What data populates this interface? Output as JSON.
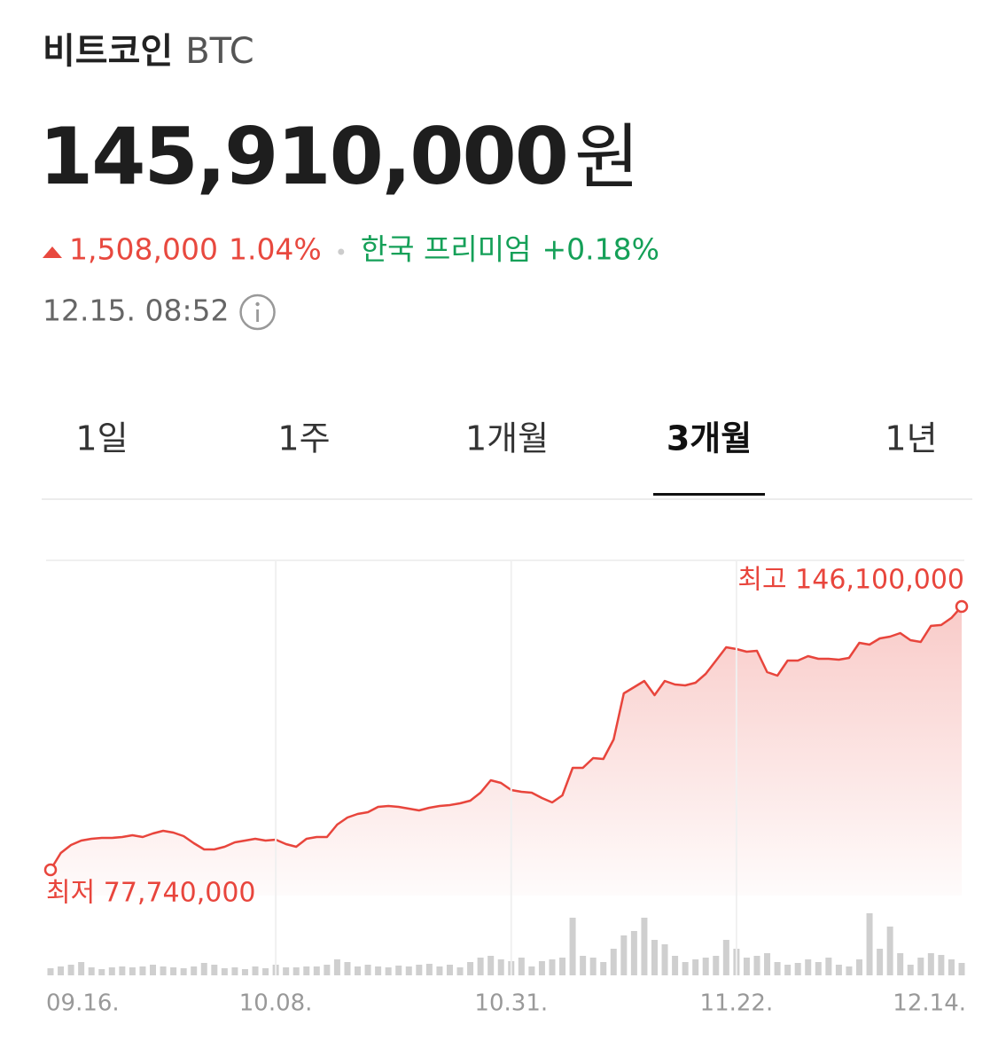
{
  "header": {
    "name": "비트코인",
    "ticker": "BTC"
  },
  "price": {
    "value": "145,910,000",
    "unit": "원"
  },
  "change": {
    "amount": "1,508,000",
    "percent": "1.04%",
    "premium_label": "한국 프리미엄",
    "premium": "+0.18%"
  },
  "timestamp": "12.15. 08:52",
  "tabs": [
    "1일",
    "1주",
    "1개월",
    "3개월",
    "1년"
  ],
  "active_tab": 3,
  "chart_data": [
    {
      "type": "line",
      "categories": [
        "09.16.",
        null,
        null,
        null,
        null,
        null,
        null,
        null,
        null,
        null,
        null,
        null,
        null,
        null,
        null,
        null,
        null,
        null,
        null,
        null,
        null,
        null,
        "10.08.",
        null,
        null,
        null,
        null,
        null,
        null,
        null,
        null,
        null,
        null,
        null,
        null,
        null,
        null,
        null,
        null,
        null,
        null,
        null,
        null,
        null,
        null,
        "10.31.",
        null,
        null,
        null,
        null,
        null,
        null,
        null,
        null,
        null,
        null,
        null,
        null,
        null,
        null,
        null,
        null,
        null,
        null,
        null,
        null,
        null,
        "11.22.",
        null,
        null,
        null,
        null,
        null,
        null,
        null,
        null,
        null,
        null,
        null,
        null,
        null,
        null,
        null,
        null,
        null,
        null,
        null,
        null,
        null,
        "12.14."
      ],
      "series": [
        {
          "color": "#e8453c",
          "values": [
            77740000,
            82110000,
            84190000,
            85340000,
            85800000,
            86030000,
            86030000,
            86260000,
            86720000,
            86260000,
            87180000,
            87870000,
            87410000,
            86490000,
            84650000,
            83030000,
            83030000,
            83730000,
            84880000,
            85340000,
            85800000,
            85340000,
            85570000,
            84420000,
            83730000,
            85800000,
            86260000,
            86260000,
            89480000,
            91320000,
            92240000,
            92700000,
            94080000,
            94310000,
            94080000,
            93620000,
            93160000,
            93850000,
            94310000,
            94540000,
            95010000,
            95700000,
            97770000,
            100990000,
            100300000,
            98460000,
            98000000,
            97770000,
            96390000,
            95240000,
            97080000,
            104210000,
            104210000,
            106750000,
            106520000,
            111580000,
            123550000,
            125160000,
            126770000,
            123090000,
            126770000,
            125850000,
            125620000,
            126310000,
            128610000,
            132070000,
            135520000,
            135060000,
            134370000,
            134600000,
            129070000,
            128150000,
            132070000,
            132070000,
            133220000,
            132530000,
            132530000,
            132300000,
            132760000,
            136670000,
            136210000,
            137820000,
            138280000,
            139200000,
            137360000,
            136900000,
            141050000,
            141280000,
            143120000,
            146100000
          ]
        }
      ],
      "annotations": {
        "high": "최고 146,100,000",
        "low": "최저 77,740,000"
      }
    },
    {
      "type": "bar",
      "color": "#cfcfcf",
      "values": [
        8,
        10,
        12,
        15,
        9,
        7,
        9,
        10,
        9,
        10,
        12,
        10,
        9,
        8,
        10,
        14,
        12,
        8,
        9,
        7,
        10,
        8,
        12,
        9,
        9,
        10,
        10,
        12,
        18,
        15,
        10,
        12,
        10,
        9,
        11,
        10,
        12,
        13,
        10,
        12,
        9,
        15,
        20,
        22,
        18,
        16,
        20,
        10,
        16,
        18,
        20,
        65,
        22,
        20,
        15,
        30,
        45,
        50,
        65,
        40,
        35,
        22,
        15,
        18,
        20,
        22,
        40,
        30,
        20,
        22,
        25,
        15,
        12,
        14,
        18,
        15,
        20,
        12,
        10,
        18,
        70,
        30,
        55,
        25,
        12,
        20,
        25,
        23,
        18,
        14
      ]
    }
  ]
}
